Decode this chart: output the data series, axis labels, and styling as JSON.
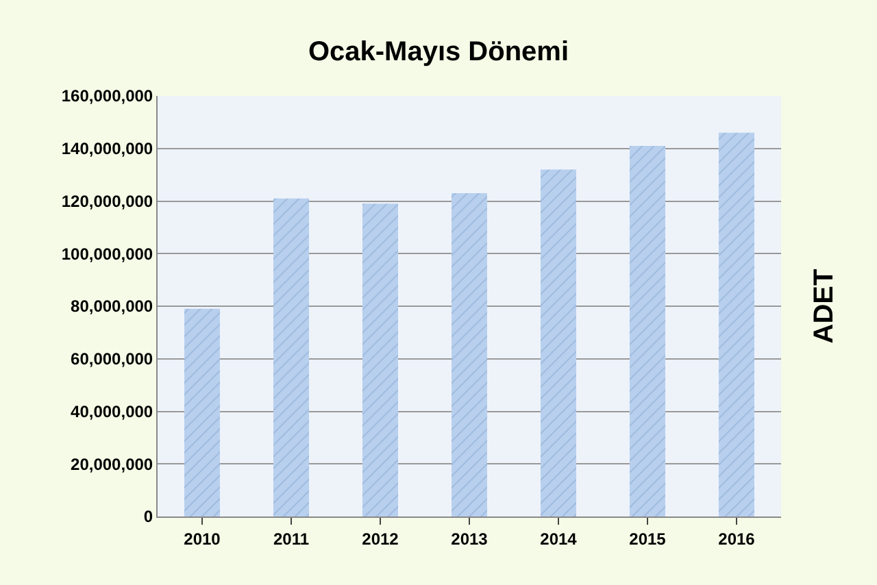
{
  "chart_data": {
    "type": "bar",
    "title": "Ocak-Mayıs Dönemi",
    "ylabel": "ADET",
    "categories": [
      "2010",
      "2011",
      "2012",
      "2013",
      "2014",
      "2015",
      "2016"
    ],
    "values": [
      79000000,
      121000000,
      119000000,
      123000000,
      132000000,
      141000000,
      146000000
    ],
    "color": "#b8d0ee",
    "ylim": [
      0,
      160000000
    ],
    "yticks": [
      0,
      {
        "value": 20000000,
        "label": "20,000,000"
      },
      {
        "value": 40000000,
        "label": "40,000,000"
      },
      {
        "value": 60000000,
        "label": "60,000,000"
      },
      {
        "value": 80000000,
        "label": "80,000,000"
      },
      {
        "value": 100000000,
        "label": "100,000,000"
      },
      {
        "value": 120000000,
        "label": "120,000,000"
      },
      {
        "value": 140000000,
        "label": "140,000,000"
      },
      {
        "value": 160000000,
        "label": "160,000,000"
      }
    ],
    "grid": "y"
  }
}
